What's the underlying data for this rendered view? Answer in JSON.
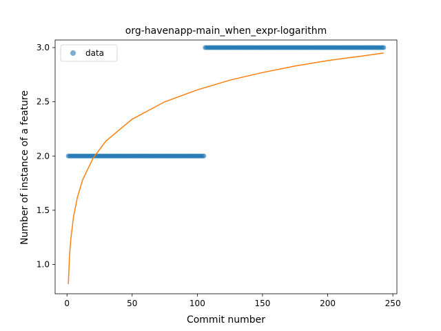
{
  "chart_data": {
    "type": "scatter",
    "title": "org-havenapp-main_when_expr-logarithm",
    "xlabel": "Commit number",
    "ylabel": "Number of instance of a feature",
    "xlim": [
      -9.1,
      253.1
    ],
    "ylim": [
      0.73,
      3.07
    ],
    "xticks": [
      0,
      50,
      100,
      150,
      200,
      250
    ],
    "yticks": [
      1.0,
      1.5,
      2.0,
      2.5,
      3.0
    ],
    "xtick_labels": [
      "0",
      "50",
      "100",
      "150",
      "200",
      "250"
    ],
    "ytick_labels": [
      "1.0",
      "1.5",
      "2.0",
      "2.5",
      "3.0"
    ],
    "legend": {
      "position": "upper-left",
      "entries": [
        "data"
      ]
    },
    "grid": false,
    "series": [
      {
        "name": "data",
        "kind": "scatter",
        "color": "#1f77b4",
        "segments": [
          {
            "x_start": 1,
            "x_end": 105,
            "y": 2
          },
          {
            "x_start": 106,
            "x_end": 243,
            "y": 3
          }
        ]
      },
      {
        "kind": "line",
        "color": "#ff7f0e",
        "model": "logarithm",
        "points": [
          [
            1,
            0.82
          ],
          [
            2,
            1.09
          ],
          [
            3,
            1.24
          ],
          [
            5,
            1.44
          ],
          [
            8,
            1.62
          ],
          [
            12,
            1.78
          ],
          [
            20,
            1.98
          ],
          [
            30,
            2.14
          ],
          [
            50,
            2.34
          ],
          [
            75,
            2.5
          ],
          [
            100,
            2.61
          ],
          [
            125,
            2.7
          ],
          [
            150,
            2.77
          ],
          [
            175,
            2.83
          ],
          [
            200,
            2.88
          ],
          [
            225,
            2.92
          ],
          [
            243,
            2.95
          ]
        ]
      }
    ]
  }
}
